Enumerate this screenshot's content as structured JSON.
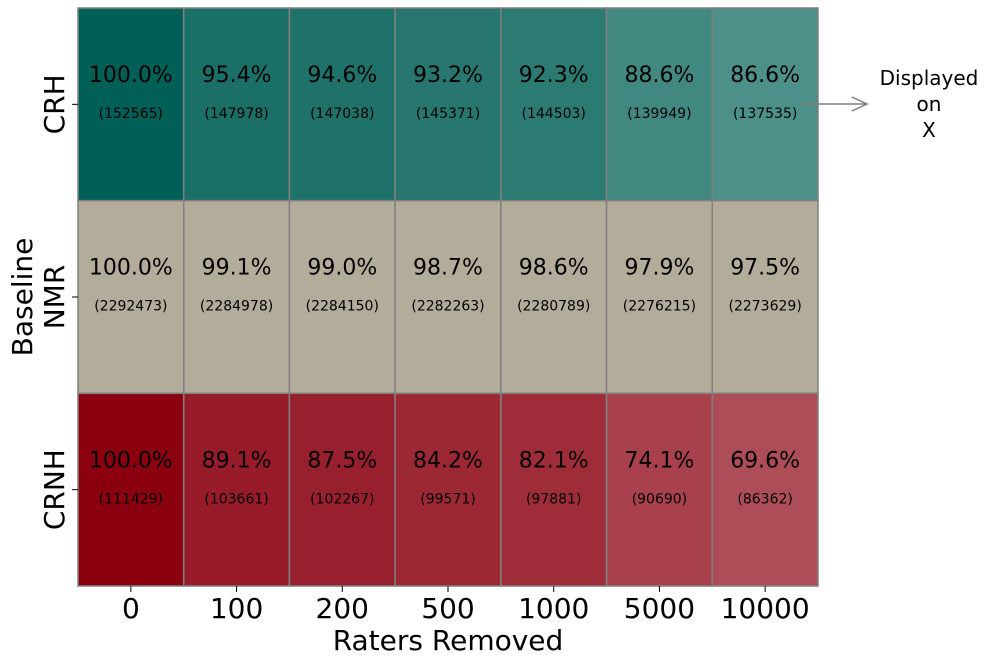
{
  "chart_data": {
    "type": "heatmap",
    "xlabel": "Raters Removed",
    "ylabel": "Baseline",
    "x_categories": [
      "0",
      "100",
      "200",
      "500",
      "1000",
      "5000",
      "10000"
    ],
    "y_categories": [
      "CRH",
      "NMR",
      "CRNH"
    ],
    "rows": [
      {
        "name": "CRH",
        "color": "#005f56",
        "percent_labels": [
          "100.0%",
          "95.4%",
          "94.6%",
          "93.2%",
          "92.3%",
          "88.6%",
          "86.6%"
        ],
        "percent_values": [
          100.0,
          95.4,
          94.6,
          93.2,
          92.3,
          88.6,
          86.6
        ],
        "count_labels": [
          "(152565)",
          "(147978)",
          "(147038)",
          "(145371)",
          "(144503)",
          "(139949)",
          "(137535)"
        ],
        "count_values": [
          152565,
          147978,
          147038,
          145371,
          144503,
          139949,
          137535
        ]
      },
      {
        "name": "NMR",
        "color": "#b4ac9b",
        "percent_labels": [
          "100.0%",
          "99.1%",
          "99.0%",
          "98.7%",
          "98.6%",
          "97.9%",
          "97.5%"
        ],
        "percent_values": [
          100.0,
          99.1,
          99.0,
          98.7,
          98.6,
          97.9,
          97.5
        ],
        "count_labels": [
          "(2292473)",
          "(2284978)",
          "(2284150)",
          "(2282263)",
          "(2280789)",
          "(2276215)",
          "(2273629)"
        ],
        "count_values": [
          2292473,
          2284978,
          2284150,
          2282263,
          2280789,
          2276215,
          2273629
        ]
      },
      {
        "name": "CRNH",
        "color": "#8a000f",
        "percent_labels": [
          "100.0%",
          "89.1%",
          "87.5%",
          "84.2%",
          "82.1%",
          "74.1%",
          "69.6%"
        ],
        "percent_values": [
          100.0,
          89.1,
          87.5,
          84.2,
          82.1,
          74.1,
          69.6
        ],
        "count_labels": [
          "(111429)",
          "(103661)",
          "(102267)",
          "(99571)",
          "(97881)",
          "(90690)",
          "(86362)"
        ],
        "count_values": [
          111429,
          103661,
          102267,
          99571,
          97881,
          90690,
          86362
        ]
      }
    ],
    "annotation": {
      "lines": [
        "Displayed",
        "on",
        "X"
      ],
      "points_to_row": "CRH"
    },
    "grid": true,
    "cell_border_color": "#808080"
  }
}
